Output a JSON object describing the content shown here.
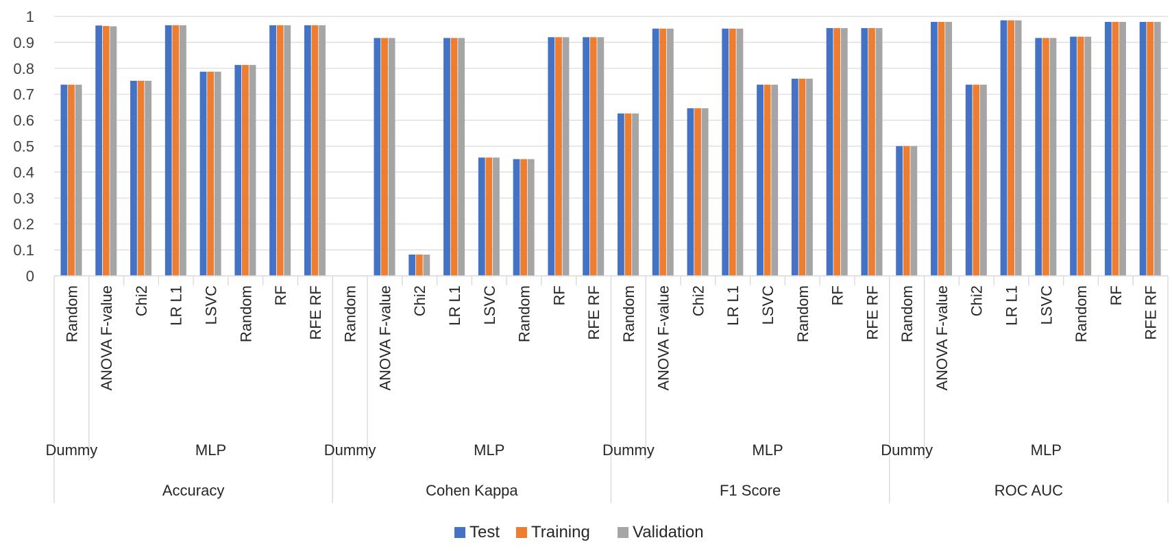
{
  "chart_data": {
    "type": "bar",
    "title": "",
    "xlabel": "",
    "ylabel": "",
    "ylim": [
      0,
      1
    ],
    "yticks": [
      "0",
      "0.1",
      "0.2",
      "0.3",
      "0.4",
      "0.5",
      "0.6",
      "0.7",
      "0.8",
      "0.9",
      "1"
    ],
    "grid": true,
    "legend_position": "bottom-center",
    "categories": [
      "Random",
      "ANOVA F-value",
      "Chi2",
      "LR L1",
      "LSVC",
      "Random",
      "RF",
      "RFE RF",
      "Random",
      "ANOVA F-value",
      "Chi2",
      "LR L1",
      "LSVC",
      "Random",
      "RF",
      "RFE RF",
      "Random",
      "ANOVA F-value",
      "Chi2",
      "LR L1",
      "LSVC",
      "Random",
      "RF",
      "RFE RF",
      "Random",
      "ANOVA F-value",
      "Chi2",
      "LR L1",
      "LSVC",
      "Random",
      "RF",
      "RFE RF"
    ],
    "model_groups": [
      {
        "label": "Dummy",
        "start": 0,
        "end": 0
      },
      {
        "label": "MLP",
        "start": 1,
        "end": 7
      },
      {
        "label": "Dummy",
        "start": 8,
        "end": 8
      },
      {
        "label": "MLP",
        "start": 9,
        "end": 15
      },
      {
        "label": "Dummy",
        "start": 16,
        "end": 16
      },
      {
        "label": "MLP",
        "start": 17,
        "end": 23
      },
      {
        "label": "Dummy",
        "start": 24,
        "end": 24
      },
      {
        "label": "MLP",
        "start": 25,
        "end": 31
      }
    ],
    "metric_groups": [
      {
        "label": "Accuracy",
        "start": 0,
        "end": 7
      },
      {
        "label": "Cohen Kappa",
        "start": 8,
        "end": 15
      },
      {
        "label": "F1 Score",
        "start": 16,
        "end": 23
      },
      {
        "label": "ROC AUC",
        "start": 24,
        "end": 31
      }
    ],
    "series": [
      {
        "name": "Test",
        "color": "#4472C4",
        "values": [
          0.737,
          0.965,
          0.752,
          0.966,
          0.787,
          0.813,
          0.966,
          0.966,
          0.0,
          0.917,
          0.082,
          0.917,
          0.456,
          0.45,
          0.92,
          0.92,
          0.626,
          0.953,
          0.646,
          0.953,
          0.737,
          0.76,
          0.955,
          0.955,
          0.5,
          0.979,
          0.737,
          0.985,
          0.917,
          0.922,
          0.979,
          0.979
        ]
      },
      {
        "name": "Training",
        "color": "#ED7D31",
        "values": [
          0.737,
          0.963,
          0.752,
          0.966,
          0.787,
          0.813,
          0.966,
          0.966,
          0.0,
          0.917,
          0.082,
          0.917,
          0.456,
          0.45,
          0.92,
          0.92,
          0.626,
          0.953,
          0.646,
          0.953,
          0.737,
          0.76,
          0.955,
          0.955,
          0.5,
          0.979,
          0.737,
          0.985,
          0.917,
          0.922,
          0.979,
          0.979
        ]
      },
      {
        "name": "Validation",
        "color": "#A5A5A5",
        "values": [
          0.737,
          0.962,
          0.752,
          0.966,
          0.787,
          0.813,
          0.966,
          0.966,
          0.0,
          0.917,
          0.082,
          0.917,
          0.456,
          0.45,
          0.92,
          0.92,
          0.626,
          0.953,
          0.646,
          0.953,
          0.737,
          0.76,
          0.955,
          0.955,
          0.5,
          0.979,
          0.737,
          0.985,
          0.917,
          0.922,
          0.979,
          0.979
        ]
      }
    ]
  }
}
